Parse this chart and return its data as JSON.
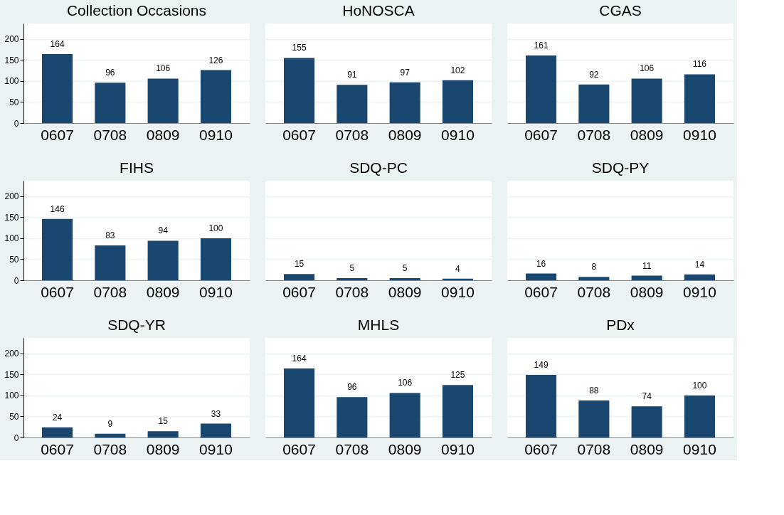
{
  "chart_data": [
    {
      "type": "bar",
      "title": "Collection Occasions",
      "categories": [
        "0607",
        "0708",
        "0809",
        "0910"
      ],
      "values": [
        164,
        96,
        106,
        126
      ],
      "color": "#1a476f",
      "ylim": [
        0,
        237
      ],
      "yticks": [
        0,
        50,
        100,
        150,
        200
      ],
      "grid": "y",
      "data_labels": true
    },
    {
      "type": "bar",
      "title": "HoNOSCA",
      "categories": [
        "0607",
        "0708",
        "0809",
        "0910"
      ],
      "values": [
        155,
        91,
        97,
        102
      ],
      "color": "#1a476f",
      "ylim": [
        0,
        237
      ],
      "yticks": [
        0,
        50,
        100,
        150,
        200
      ],
      "grid": "y",
      "data_labels": true,
      "tick_labels": "x"
    },
    {
      "type": "bar",
      "title": "CGAS",
      "categories": [
        "0607",
        "0708",
        "0809",
        "0910"
      ],
      "values": [
        161,
        92,
        106,
        116
      ],
      "color": "#1a476f",
      "ylim": [
        0,
        237
      ],
      "yticks": [
        0,
        50,
        100,
        150,
        200
      ],
      "grid": "y",
      "data_labels": true,
      "tick_labels": "x"
    },
    {
      "type": "bar",
      "title": "FIHS",
      "categories": [
        "0607",
        "0708",
        "0809",
        "0910"
      ],
      "values": [
        146,
        83,
        94,
        100
      ],
      "color": "#1a476f",
      "ylim": [
        0,
        237
      ],
      "yticks": [
        0,
        50,
        100,
        150,
        200
      ],
      "grid": "y",
      "data_labels": true
    },
    {
      "type": "bar",
      "title": "SDQ-PC",
      "categories": [
        "0607",
        "0708",
        "0809",
        "0910"
      ],
      "values": [
        15,
        5,
        5,
        4
      ],
      "color": "#1a476f",
      "ylim": [
        0,
        237
      ],
      "yticks": [
        0,
        50,
        100,
        150,
        200
      ],
      "grid": "y",
      "data_labels": true,
      "tick_labels": "x"
    },
    {
      "type": "bar",
      "title": "SDQ-PY",
      "categories": [
        "0607",
        "0708",
        "0809",
        "0910"
      ],
      "values": [
        16,
        8,
        11,
        14
      ],
      "color": "#1a476f",
      "ylim": [
        0,
        237
      ],
      "yticks": [
        0,
        50,
        100,
        150,
        200
      ],
      "grid": "y",
      "data_labels": true,
      "tick_labels": "x"
    },
    {
      "type": "bar",
      "title": "SDQ-YR",
      "categories": [
        "0607",
        "0708",
        "0809",
        "0910"
      ],
      "values": [
        24,
        9,
        15,
        33
      ],
      "color": "#1a476f",
      "ylim": [
        0,
        237
      ],
      "yticks": [
        0,
        50,
        100,
        150,
        200
      ],
      "grid": "y",
      "data_labels": true
    },
    {
      "type": "bar",
      "title": "MHLS",
      "categories": [
        "0607",
        "0708",
        "0809",
        "0910"
      ],
      "values": [
        164,
        96,
        106,
        125
      ],
      "color": "#1a476f",
      "ylim": [
        0,
        237
      ],
      "yticks": [
        0,
        50,
        100,
        150,
        200
      ],
      "grid": "y",
      "data_labels": true,
      "tick_labels": "x"
    },
    {
      "type": "bar",
      "title": "PDx",
      "categories": [
        "0607",
        "0708",
        "0809",
        "0910"
      ],
      "values": [
        149,
        88,
        74,
        100
      ],
      "color": "#1a476f",
      "ylim": [
        0,
        237
      ],
      "yticks": [
        0,
        50,
        100,
        150,
        200
      ],
      "grid": "y",
      "data_labels": true,
      "tick_labels": "x"
    }
  ]
}
